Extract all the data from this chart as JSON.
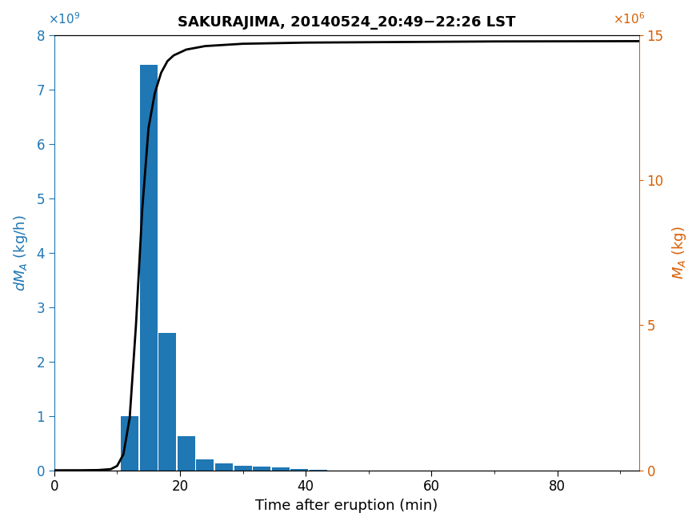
{
  "title": "SAKURAJIMA, 20140524_20:49−22:26 LST",
  "xlabel": "Time after eruption (min)",
  "ylabel_left": "dM_A (kg/h)",
  "ylabel_right": "M_A (kg)",
  "bar_color": "#1f77b4",
  "line_color": "#000000",
  "bar_centers": [
    12,
    15,
    18,
    21,
    24,
    27,
    30,
    33,
    36,
    39,
    42
  ],
  "bar_heights": [
    1000000000.0,
    7450000000.0,
    2520000000.0,
    620000000.0,
    200000000.0,
    120000000.0,
    90000000.0,
    70000000.0,
    50000000.0,
    30000000.0,
    15000000.0
  ],
  "bar_width": 2.8,
  "ylim_left": [
    0,
    8000000000.0
  ],
  "ylim_right": [
    0,
    15000000.0
  ],
  "xlim": [
    0,
    93
  ],
  "xticks": [
    0,
    20,
    40,
    60,
    80
  ],
  "yticks_left": [
    0,
    1000000000.0,
    2000000000.0,
    3000000000.0,
    4000000000.0,
    5000000000.0,
    6000000000.0,
    7000000000.0,
    8000000000.0
  ],
  "yticks_right": [
    0,
    5000000.0,
    10000000.0,
    15000000.0
  ],
  "line_x": [
    0,
    4,
    7,
    9,
    10,
    11,
    12,
    13,
    14,
    15,
    16,
    17,
    18,
    19,
    21,
    24,
    30,
    40,
    55,
    70,
    93
  ],
  "line_y": [
    0,
    1000.0,
    8000.0,
    40000.0,
    150000.0,
    550000.0,
    1800000.0,
    5000000.0,
    9000000.0,
    11800000.0,
    13000000.0,
    13700000.0,
    14100000.0,
    14300000.0,
    14500000.0,
    14620000.0,
    14700000.0,
    14740000.0,
    14760000.0,
    14780000.0,
    14790000.0
  ],
  "orange_color": "#d95f02",
  "title_fontsize": 13,
  "label_fontsize": 13,
  "tick_fontsize": 12
}
